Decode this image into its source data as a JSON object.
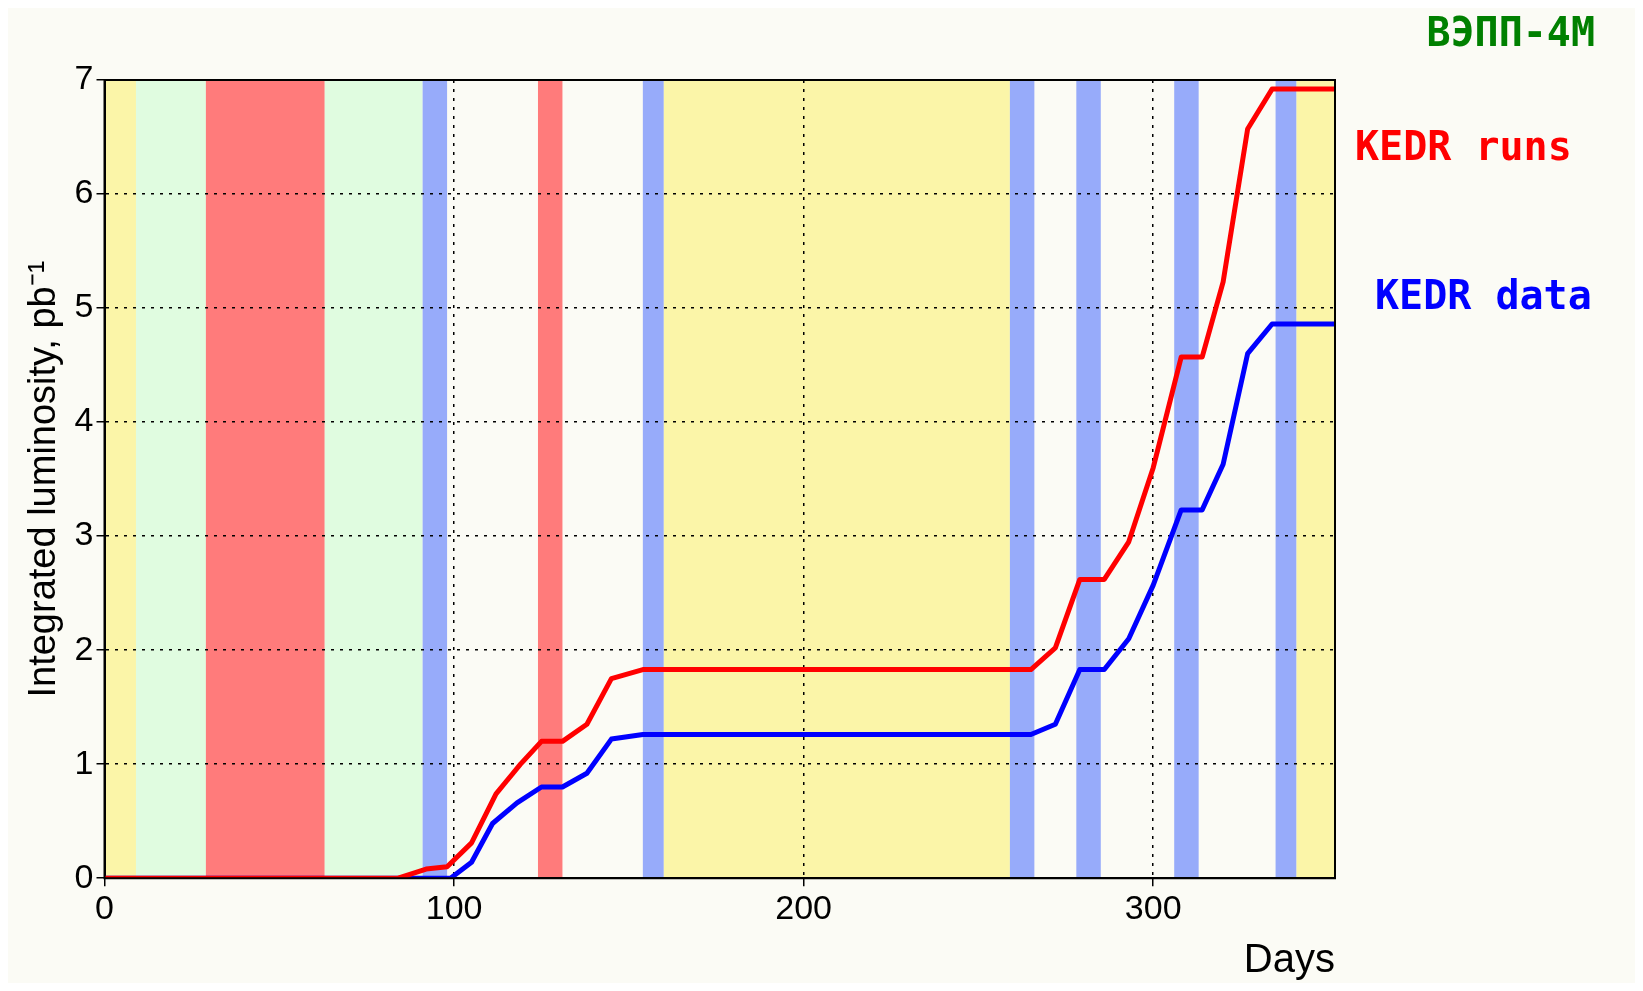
{
  "chart_data": {
    "type": "line",
    "title": "ВЭПП-4М",
    "xlabel": "Days",
    "ylabel": "Integrated luminosity, pb⁻¹",
    "xlim": [
      0,
      352
    ],
    "ylim": [
      0,
      7
    ],
    "xticks": [
      0,
      100,
      200,
      300
    ],
    "yticks": [
      0,
      1,
      2,
      3,
      4,
      5,
      6,
      7
    ],
    "grid": true,
    "legend": false,
    "marker": "none",
    "line_style": "solid",
    "series": [
      {
        "name": "KEDR runs",
        "color": "#ff0000",
        "x": [
          0,
          84,
          92,
          98,
          105,
          112,
          119,
          125,
          131,
          138,
          145,
          154,
          265,
          272,
          279,
          286,
          293,
          300,
          308,
          314,
          320,
          327,
          334,
          352
        ],
        "values": [
          0,
          0,
          0.08,
          0.1,
          0.31,
          0.74,
          1.0,
          1.2,
          1.2,
          1.35,
          1.75,
          1.83,
          1.83,
          2.02,
          2.62,
          2.62,
          2.95,
          3.6,
          4.57,
          4.57,
          5.23,
          6.57,
          6.92,
          6.92
        ]
      },
      {
        "name": "KEDR data",
        "color": "#0000ff",
        "x": [
          0,
          99,
          105,
          111,
          118,
          125,
          131,
          138,
          145,
          154,
          265,
          272,
          279,
          286,
          293,
          300,
          308,
          314,
          320,
          327,
          334,
          352
        ],
        "values": [
          0,
          0,
          0.14,
          0.48,
          0.66,
          0.8,
          0.8,
          0.92,
          1.22,
          1.26,
          1.26,
          1.35,
          1.83,
          1.83,
          2.1,
          2.57,
          3.23,
          3.23,
          3.63,
          4.6,
          4.86,
          4.86
        ]
      }
    ],
    "bands": [
      {
        "axis": "x",
        "from": 0,
        "to": 9,
        "color": "#fbf5a8"
      },
      {
        "axis": "x",
        "from": 9,
        "to": 29,
        "color": "#e0fce0"
      },
      {
        "axis": "x",
        "from": 29,
        "to": 63,
        "color": "#ff7b7b"
      },
      {
        "axis": "x",
        "from": 63,
        "to": 91,
        "color": "#e0fce0"
      },
      {
        "axis": "x",
        "from": 91,
        "to": 98,
        "color": "#97abfa"
      },
      {
        "axis": "x",
        "from": 124,
        "to": 131,
        "color": "#ff7b7b"
      },
      {
        "axis": "x",
        "from": 154,
        "to": 160,
        "color": "#97abfa"
      },
      {
        "axis": "x",
        "from": 160,
        "to": 259,
        "color": "#fbf5a8"
      },
      {
        "axis": "x",
        "from": 259,
        "to": 266,
        "color": "#97abfa"
      },
      {
        "axis": "x",
        "from": 278,
        "to": 285,
        "color": "#97abfa"
      },
      {
        "axis": "x",
        "from": 306,
        "to": 313,
        "color": "#97abfa"
      },
      {
        "axis": "x",
        "from": 335,
        "to": 341,
        "color": "#97abfa"
      },
      {
        "axis": "x",
        "from": 341,
        "to": 352,
        "color": "#fbf5a8"
      }
    ]
  }
}
